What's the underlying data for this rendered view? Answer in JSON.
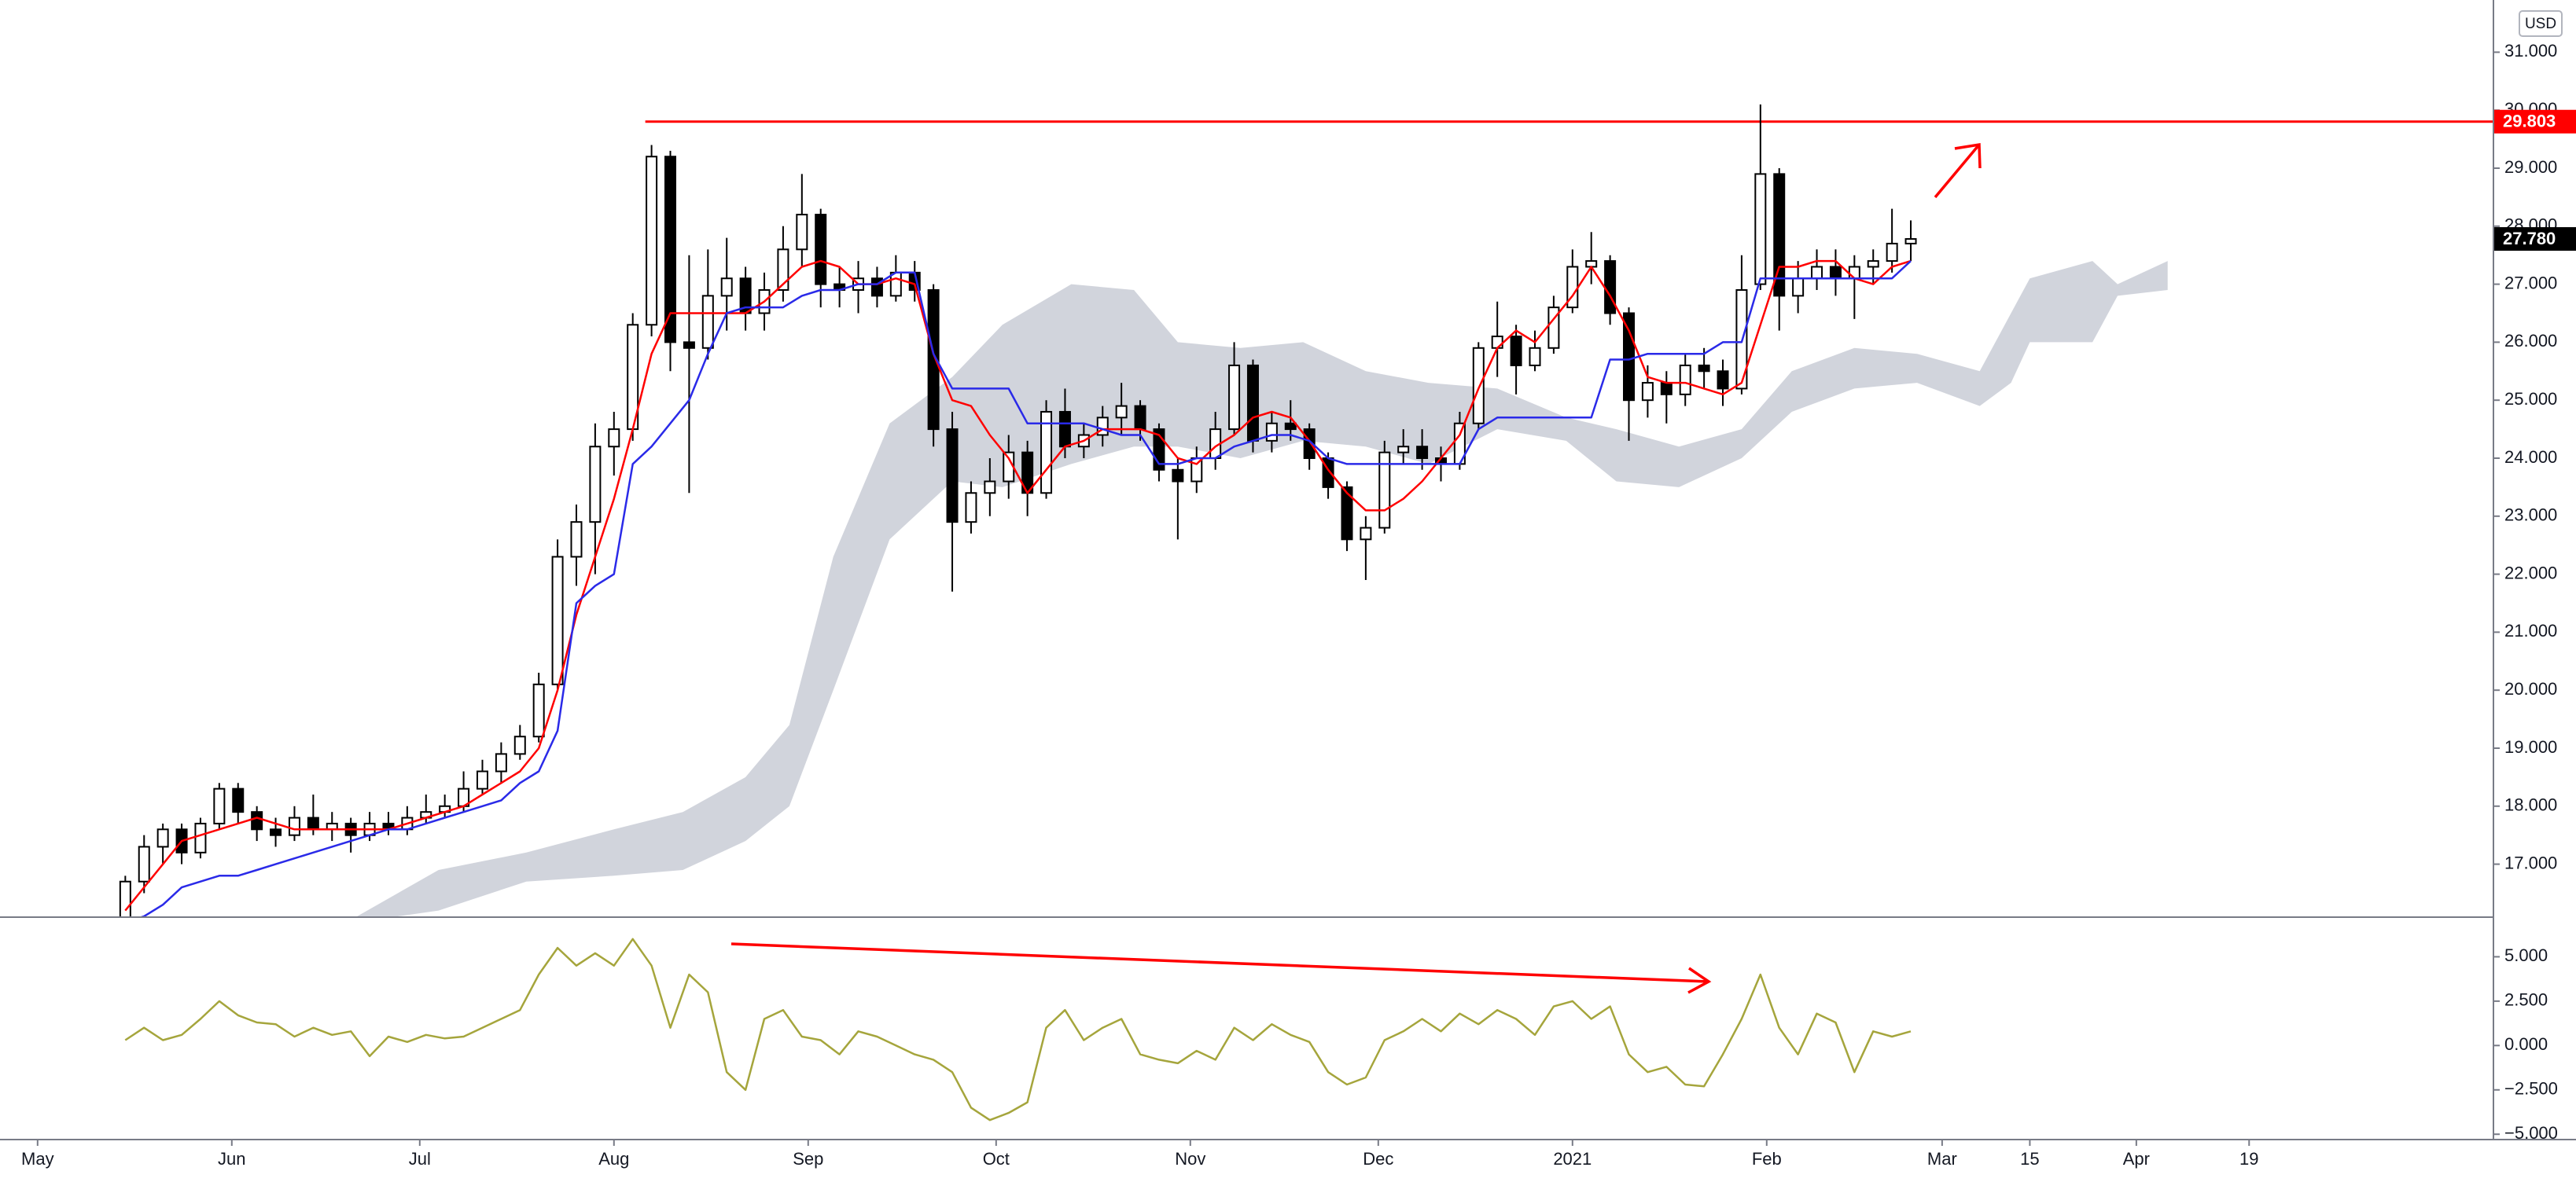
{
  "chart_data": [
    {
      "type": "candlestick",
      "currency": "USD",
      "x": [
        "2020-05-15",
        "2020-05-18",
        "2020-05-21",
        "2020-05-24",
        "2020-05-27",
        "2020-05-30",
        "2020-06-02",
        "2020-06-05",
        "2020-06-08",
        "2020-06-11",
        "2020-06-14",
        "2020-06-17",
        "2020-06-20",
        "2020-06-23",
        "2020-06-26",
        "2020-06-29",
        "2020-07-02",
        "2020-07-05",
        "2020-07-08",
        "2020-07-11",
        "2020-07-14",
        "2020-07-17",
        "2020-07-20",
        "2020-07-23",
        "2020-07-26",
        "2020-07-29",
        "2020-08-01",
        "2020-08-04",
        "2020-08-07",
        "2020-08-10",
        "2020-08-13",
        "2020-08-16",
        "2020-08-19",
        "2020-08-22",
        "2020-08-25",
        "2020-08-28",
        "2020-08-31",
        "2020-09-03",
        "2020-09-06",
        "2020-09-09",
        "2020-09-12",
        "2020-09-15",
        "2020-09-18",
        "2020-09-21",
        "2020-09-24",
        "2020-09-27",
        "2020-09-30",
        "2020-10-03",
        "2020-10-06",
        "2020-10-09",
        "2020-10-12",
        "2020-10-15",
        "2020-10-18",
        "2020-10-21",
        "2020-10-24",
        "2020-10-27",
        "2020-10-30",
        "2020-11-02",
        "2020-11-05",
        "2020-11-08",
        "2020-11-11",
        "2020-11-14",
        "2020-11-17",
        "2020-11-20",
        "2020-11-23",
        "2020-11-26",
        "2020-11-29",
        "2020-12-02",
        "2020-12-05",
        "2020-12-08",
        "2020-12-11",
        "2020-12-14",
        "2020-12-17",
        "2020-12-20",
        "2020-12-23",
        "2020-12-26",
        "2020-12-29",
        "2021-01-01",
        "2021-01-04",
        "2021-01-07",
        "2021-01-10",
        "2021-01-13",
        "2021-01-16",
        "2021-01-19",
        "2021-01-22",
        "2021-01-25",
        "2021-01-28",
        "2021-01-31",
        "2021-02-03",
        "2021-02-06",
        "2021-02-09",
        "2021-02-12",
        "2021-02-15",
        "2021-02-18",
        "2021-02-21",
        "2021-02-24"
      ],
      "open": [
        16.0,
        16.7,
        17.3,
        17.6,
        17.2,
        17.7,
        18.3,
        17.9,
        17.6,
        17.5,
        17.8,
        17.6,
        17.7,
        17.5,
        17.7,
        17.6,
        17.8,
        17.9,
        18.0,
        18.3,
        18.6,
        18.9,
        19.2,
        20.1,
        22.3,
        22.9,
        24.2,
        24.5,
        26.3,
        29.2,
        26.0,
        25.9,
        26.8,
        27.1,
        26.5,
        26.9,
        27.6,
        28.2,
        27.0,
        26.9,
        27.1,
        26.8,
        27.2,
        26.9,
        24.5,
        22.9,
        23.4,
        23.6,
        24.1,
        23.4,
        24.8,
        24.2,
        24.4,
        24.7,
        24.9,
        24.5,
        23.8,
        23.6,
        24.0,
        24.5,
        25.6,
        24.3,
        24.6,
        24.5,
        24.0,
        23.5,
        22.6,
        22.8,
        24.1,
        24.2,
        24.0,
        23.9,
        24.6,
        25.9,
        26.1,
        25.6,
        25.9,
        26.6,
        27.3,
        27.4,
        26.5,
        25.0,
        25.3,
        25.1,
        25.6,
        25.5,
        25.2,
        27.0,
        28.9,
        26.8,
        27.1,
        27.3,
        27.1,
        27.3,
        27.4,
        27.7
      ],
      "high": [
        16.8,
        17.5,
        17.7,
        17.7,
        17.8,
        18.4,
        18.4,
        18.0,
        17.8,
        18.0,
        18.2,
        17.9,
        17.8,
        17.9,
        17.9,
        18.0,
        18.2,
        18.2,
        18.6,
        18.8,
        19.1,
        19.4,
        20.3,
        22.6,
        23.2,
        24.6,
        24.8,
        26.5,
        29.4,
        29.3,
        27.5,
        27.6,
        27.8,
        27.3,
        27.2,
        28.0,
        28.9,
        28.3,
        27.3,
        27.4,
        27.3,
        27.5,
        27.4,
        27.0,
        24.8,
        23.6,
        24.0,
        24.4,
        24.3,
        25.0,
        25.2,
        24.6,
        24.9,
        25.3,
        25.0,
        24.6,
        24.0,
        24.2,
        24.8,
        26.0,
        25.7,
        24.8,
        25.0,
        24.6,
        24.1,
        23.6,
        23.0,
        24.3,
        24.5,
        24.5,
        24.2,
        24.8,
        26.0,
        26.7,
        26.3,
        26.2,
        26.8,
        27.6,
        27.9,
        27.5,
        26.6,
        25.6,
        25.5,
        25.8,
        25.9,
        25.7,
        27.5,
        30.1,
        29.0,
        27.4,
        27.6,
        27.6,
        27.5,
        27.6,
        28.3,
        28.1
      ],
      "low": [
        15.9,
        16.5,
        17.0,
        17.0,
        17.1,
        17.6,
        17.7,
        17.4,
        17.3,
        17.4,
        17.5,
        17.4,
        17.2,
        17.4,
        17.5,
        17.5,
        17.7,
        17.8,
        17.9,
        18.2,
        18.4,
        18.8,
        19.1,
        20.0,
        21.8,
        22.0,
        23.7,
        24.3,
        26.1,
        25.5,
        23.4,
        25.7,
        26.2,
        26.2,
        26.2,
        26.7,
        27.3,
        26.6,
        26.6,
        26.5,
        26.6,
        26.7,
        26.7,
        24.2,
        21.7,
        22.7,
        23.0,
        23.3,
        23.0,
        23.3,
        24.0,
        24.0,
        24.2,
        24.4,
        24.3,
        23.6,
        22.6,
        23.4,
        23.8,
        24.4,
        24.1,
        24.1,
        24.3,
        23.8,
        23.3,
        22.4,
        21.9,
        22.7,
        23.9,
        23.8,
        23.6,
        23.8,
        24.5,
        25.4,
        25.1,
        25.5,
        25.8,
        26.5,
        27.0,
        26.3,
        24.3,
        24.7,
        24.6,
        24.9,
        25.2,
        24.9,
        25.1,
        26.9,
        26.2,
        26.5,
        26.9,
        26.8,
        26.4,
        27.0,
        27.2,
        27.4
      ],
      "close": [
        16.7,
        17.3,
        17.6,
        17.2,
        17.7,
        18.3,
        17.9,
        17.6,
        17.5,
        17.8,
        17.6,
        17.7,
        17.5,
        17.7,
        17.6,
        17.8,
        17.9,
        18.0,
        18.3,
        18.6,
        18.9,
        19.2,
        20.1,
        22.3,
        22.9,
        24.2,
        24.5,
        26.3,
        29.2,
        26.0,
        25.9,
        26.8,
        27.1,
        26.5,
        26.9,
        27.6,
        28.2,
        27.0,
        26.9,
        27.1,
        26.8,
        27.2,
        26.9,
        24.5,
        22.9,
        23.4,
        23.6,
        24.1,
        23.4,
        24.8,
        24.2,
        24.4,
        24.7,
        24.9,
        24.5,
        23.8,
        23.6,
        24.0,
        24.5,
        25.6,
        24.3,
        24.6,
        24.5,
        24.0,
        23.5,
        22.6,
        22.8,
        24.1,
        24.2,
        24.0,
        23.9,
        24.6,
        25.9,
        26.1,
        25.6,
        25.9,
        26.6,
        27.3,
        27.4,
        26.5,
        25.0,
        25.3,
        25.1,
        25.6,
        25.5,
        25.2,
        26.9,
        28.9,
        26.8,
        27.1,
        27.3,
        27.1,
        27.3,
        27.4,
        27.7,
        27.78
      ],
      "last_price_label": "27.780",
      "up_color": "#ffffff",
      "down_color": "#000000",
      "series": [
        {
          "color": "#ff0000",
          "values": [
            16.2,
            16.6,
            17.0,
            17.4,
            17.5,
            17.6,
            17.7,
            17.8,
            17.7,
            17.6,
            17.6,
            17.6,
            17.6,
            17.6,
            17.6,
            17.7,
            17.8,
            17.9,
            18.0,
            18.2,
            18.4,
            18.6,
            19.0,
            20.0,
            21.3,
            22.3,
            23.3,
            24.5,
            25.8,
            26.5,
            26.5,
            26.5,
            26.5,
            26.5,
            26.7,
            27.0,
            27.3,
            27.4,
            27.3,
            27.0,
            27.0,
            27.1,
            27.0,
            25.8,
            25.0,
            24.9,
            24.4,
            24.0,
            23.4,
            23.8,
            24.2,
            24.3,
            24.5,
            24.5,
            24.5,
            24.4,
            24.0,
            23.9,
            24.2,
            24.4,
            24.7,
            24.8,
            24.7,
            24.3,
            23.8,
            23.4,
            23.1,
            23.1,
            23.3,
            23.6,
            24.0,
            24.4,
            25.2,
            25.9,
            26.2,
            26.0,
            26.4,
            26.8,
            27.3,
            26.8,
            26.2,
            25.4,
            25.3,
            25.3,
            25.2,
            25.1,
            25.3,
            26.3,
            27.3,
            27.3,
            27.4,
            27.4,
            27.1,
            27.0,
            27.3,
            27.4
          ]
        },
        {
          "color": "#2a2ae8",
          "values": [
            16.0,
            16.1,
            16.3,
            16.6,
            16.7,
            16.8,
            16.8,
            16.9,
            17.0,
            17.1,
            17.2,
            17.3,
            17.4,
            17.5,
            17.6,
            17.6,
            17.7,
            17.8,
            17.9,
            18.0,
            18.1,
            18.4,
            18.6,
            19.3,
            21.5,
            21.8,
            22.0,
            23.9,
            24.2,
            24.6,
            25.0,
            25.8,
            26.5,
            26.6,
            26.6,
            26.6,
            26.8,
            26.9,
            26.9,
            27.0,
            27.0,
            27.2,
            27.2,
            25.8,
            25.2,
            25.2,
            25.2,
            25.2,
            24.6,
            24.6,
            24.6,
            24.6,
            24.5,
            24.4,
            24.4,
            23.9,
            23.9,
            24.0,
            24.0,
            24.2,
            24.3,
            24.4,
            24.4,
            24.3,
            24.0,
            23.9,
            23.9,
            23.9,
            23.9,
            23.9,
            23.9,
            23.9,
            24.5,
            24.7,
            24.7,
            24.7,
            24.7,
            24.7,
            24.7,
            25.7,
            25.7,
            25.8,
            25.8,
            25.8,
            25.8,
            26.0,
            26.0,
            27.1,
            27.1,
            27.1,
            27.1,
            27.1,
            27.1,
            27.1,
            27.1,
            27.4
          ]
        }
      ],
      "cloud": {
        "color": "#d1d4dc",
        "x": [
          "2020-06-21",
          "2020-07-04",
          "2020-07-18",
          "2020-08-01",
          "2020-08-12",
          "2020-08-22",
          "2020-08-29",
          "2020-09-05",
          "2020-09-14",
          "2020-09-24",
          "2020-10-02",
          "2020-10-13",
          "2020-10-23",
          "2020-10-30",
          "2020-11-09",
          "2020-11-19",
          "2020-11-29",
          "2020-12-09",
          "2020-12-20",
          "2020-12-31",
          "2021-01-08",
          "2021-01-18",
          "2021-01-28",
          "2021-02-05",
          "2021-02-15",
          "2021-02-25",
          "2021-03-07",
          "2021-03-12",
          "2021-03-15",
          "2021-03-25",
          "2021-03-29",
          "2021-04-06"
        ],
        "upper": [
          16.1,
          16.9,
          17.2,
          17.6,
          17.9,
          18.5,
          19.4,
          22.3,
          24.6,
          25.4,
          26.3,
          27.0,
          26.9,
          26.0,
          25.9,
          26.0,
          25.5,
          25.3,
          25.2,
          24.7,
          24.5,
          24.2,
          24.5,
          25.5,
          25.9,
          25.8,
          25.5,
          26.5,
          27.1,
          27.4,
          27.0,
          27.4
        ],
        "lower": [
          16.0,
          16.2,
          16.7,
          16.8,
          16.9,
          17.4,
          18.0,
          20.0,
          22.6,
          23.6,
          23.5,
          23.9,
          24.2,
          24.2,
          24.0,
          24.3,
          24.2,
          23.9,
          24.5,
          24.3,
          23.6,
          23.5,
          24.0,
          24.8,
          25.2,
          25.3,
          24.9,
          25.3,
          26.0,
          26.0,
          26.8,
          26.9
        ]
      },
      "hline": {
        "value": 29.803,
        "label": "29.803",
        "start": "2020-08-06",
        "color": "#ff0000"
      },
      "ylim": [
        16.1,
        31.9
      ],
      "yticks": [
        {
          "value": 17,
          "label": "17.000"
        },
        {
          "value": 18,
          "label": "18.000"
        },
        {
          "value": 19,
          "label": "19.000"
        },
        {
          "value": 20,
          "label": "20.000"
        },
        {
          "value": 21,
          "label": "21.000"
        },
        {
          "value": 22,
          "label": "22.000"
        },
        {
          "value": 23,
          "label": "23.000"
        },
        {
          "value": 24,
          "label": "24.000"
        },
        {
          "value": 25,
          "label": "25.000"
        },
        {
          "value": 26,
          "label": "26.000"
        },
        {
          "value": 27,
          "label": "27.000"
        },
        {
          "value": 28,
          "label": "28.000"
        },
        {
          "value": 29,
          "label": "29.000"
        },
        {
          "value": 30,
          "label": "30.000"
        },
        {
          "value": 31,
          "label": "31.000"
        }
      ]
    },
    {
      "type": "line",
      "color": "#a5a53c",
      "values": [
        0.3,
        1.0,
        0.3,
        0.6,
        1.5,
        2.5,
        1.7,
        1.3,
        1.2,
        0.5,
        1.0,
        0.6,
        0.8,
        -0.6,
        0.5,
        0.2,
        0.6,
        0.4,
        0.5,
        1.0,
        1.5,
        2.0,
        4.0,
        5.5,
        4.5,
        5.2,
        4.5,
        6.0,
        4.5,
        1.0,
        4.0,
        3.0,
        -1.5,
        -2.5,
        1.5,
        2.0,
        0.5,
        0.3,
        -0.5,
        0.8,
        0.5,
        0.0,
        -0.5,
        -0.8,
        -1.5,
        -3.5,
        -4.2,
        -3.8,
        -3.2,
        1.0,
        2.0,
        0.3,
        1.0,
        1.5,
        -0.5,
        -0.8,
        -1.0,
        -0.3,
        -0.8,
        1.0,
        0.3,
        1.2,
        0.6,
        0.2,
        -1.5,
        -2.2,
        -1.8,
        0.3,
        0.8,
        1.5,
        0.8,
        1.8,
        1.2,
        2.0,
        1.5,
        0.6,
        2.2,
        2.5,
        1.5,
        2.2,
        -0.5,
        -1.5,
        -1.2,
        -2.2,
        -2.3,
        -0.5,
        1.5,
        4.0,
        1.0,
        -0.5,
        1.8,
        1.3,
        -1.5,
        0.8,
        0.5,
        0.8
      ],
      "ylim": [
        -5.3,
        7.1
      ],
      "yticks": [
        {
          "value": -5,
          "label": "−5.000"
        },
        {
          "value": -2.5,
          "label": "−2.500"
        },
        {
          "value": 0,
          "label": "0.000"
        },
        {
          "value": 2.5,
          "label": "2.500"
        },
        {
          "value": 5,
          "label": "5.000"
        }
      ],
      "xlim": [
        "2020-04-25",
        "2021-05-28"
      ],
      "xticks": [
        {
          "value": "2020-05-01",
          "label": "May"
        },
        {
          "value": "2020-06-01",
          "label": "Jun"
        },
        {
          "value": "2020-07-01",
          "label": "Jul"
        },
        {
          "value": "2020-08-01",
          "label": "Aug"
        },
        {
          "value": "2020-09-01",
          "label": "Sep"
        },
        {
          "value": "2020-10-01",
          "label": "Oct"
        },
        {
          "value": "2020-11-01",
          "label": "Nov"
        },
        {
          "value": "2020-12-01",
          "label": "Dec"
        },
        {
          "value": "2021-01-01",
          "label": "2021"
        },
        {
          "value": "2021-02-01",
          "label": "Feb"
        },
        {
          "value": "2021-03-01",
          "label": "Mar"
        },
        {
          "value": "2021-03-15",
          "label": "15"
        },
        {
          "value": "2021-04-01",
          "label": "Apr"
        },
        {
          "value": "2021-04-19",
          "label": "19"
        }
      ]
    }
  ]
}
